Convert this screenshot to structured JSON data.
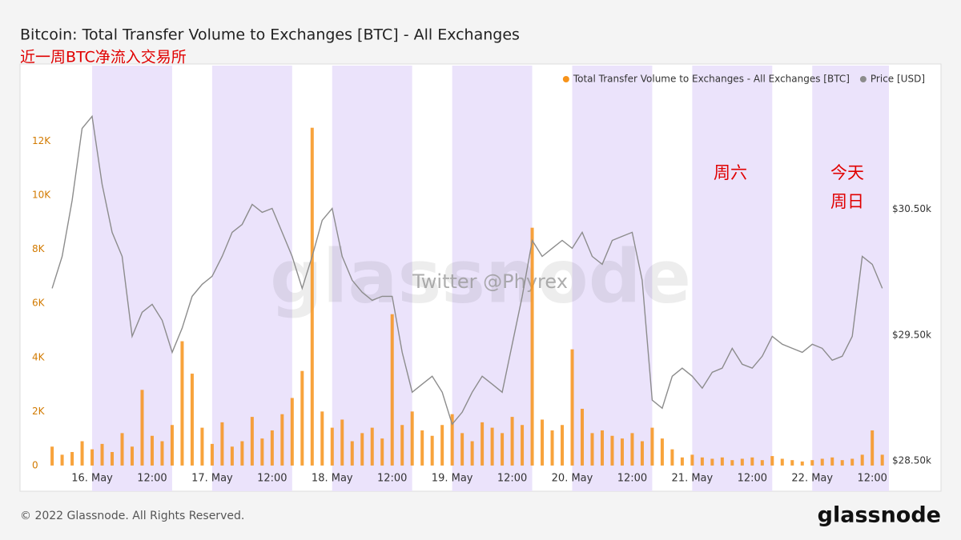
{
  "chart_data": {
    "type": "combo",
    "title": "Bitcoin: Total Transfer Volume to Exchanges [BTC] - All Exchanges",
    "subtitle": "近一周BTC净流入交易所",
    "annotations": [
      "周六",
      "今天",
      "周日"
    ],
    "watermark": [
      "glassnode",
      "Twitter @Phyrex"
    ],
    "legend": "top-right",
    "grid": false,
    "shaded_ranges": [
      [
        "05-16 00:00",
        "05-16 16:00"
      ],
      [
        "05-17 00:00",
        "05-17 16:00"
      ],
      [
        "05-18 00:00",
        "05-18 16:00"
      ],
      [
        "05-19 00:00",
        "05-19 16:00"
      ],
      [
        "05-20 00:00",
        "05-20 16:00"
      ],
      [
        "05-21 00:00",
        "05-21 16:00"
      ],
      [
        "05-22 00:00",
        "05-22 16:00"
      ]
    ],
    "shade_color": "#ebe3fb",
    "xlim": [
      "05-15 15:40",
      "05-22 15:20"
    ],
    "xticks": [
      {
        "value": "05-16 00:00",
        "label": "16. May"
      },
      {
        "value": "05-16 12:00",
        "label": "12:00"
      },
      {
        "value": "05-17 00:00",
        "label": "17. May"
      },
      {
        "value": "05-17 12:00",
        "label": "12:00"
      },
      {
        "value": "05-18 00:00",
        "label": "18. May"
      },
      {
        "value": "05-18 12:00",
        "label": "12:00"
      },
      {
        "value": "05-19 00:00",
        "label": "19. May"
      },
      {
        "value": "05-19 12:00",
        "label": "12:00"
      },
      {
        "value": "05-20 00:00",
        "label": "20. May"
      },
      {
        "value": "05-20 12:00",
        "label": "12:00"
      },
      {
        "value": "05-21 00:00",
        "label": "21. May"
      },
      {
        "value": "05-21 12:00",
        "label": "12:00"
      },
      {
        "value": "05-22 00:00",
        "label": "22. May"
      },
      {
        "value": "05-22 12:00",
        "label": "12:00"
      }
    ],
    "ylim": [
      -950,
      14800
    ],
    "yticks": [
      0,
      {
        "value": 2000,
        "label": "2K"
      },
      {
        "value": 4000,
        "label": "4K"
      },
      {
        "value": 6000,
        "label": "6K"
      },
      {
        "value": 8000,
        "label": "8K"
      },
      {
        "value": 10000,
        "label": "10K"
      },
      {
        "value": 12000,
        "label": "12K"
      }
    ],
    "y2lim": [
      28260,
      31640
    ],
    "y2ticks": [
      {
        "value": 28500,
        "label": "$28.50k"
      },
      {
        "value": 29500,
        "label": "$29.50k"
      },
      {
        "value": 30500,
        "label": "$30.50k"
      }
    ],
    "x": [
      "05-15 16:00",
      "05-15 18:00",
      "05-15 20:00",
      "05-15 22:00",
      "05-16 00:00",
      "05-16 02:00",
      "05-16 04:00",
      "05-16 06:00",
      "05-16 08:00",
      "05-16 10:00",
      "05-16 12:00",
      "05-16 14:00",
      "05-16 16:00",
      "05-16 18:00",
      "05-16 20:00",
      "05-16 22:00",
      "05-17 00:00",
      "05-17 02:00",
      "05-17 04:00",
      "05-17 06:00",
      "05-17 08:00",
      "05-17 10:00",
      "05-17 12:00",
      "05-17 14:00",
      "05-17 16:00",
      "05-17 18:00",
      "05-17 20:00",
      "05-17 22:00",
      "05-18 00:00",
      "05-18 02:00",
      "05-18 04:00",
      "05-18 06:00",
      "05-18 08:00",
      "05-18 10:00",
      "05-18 12:00",
      "05-18 14:00",
      "05-18 16:00",
      "05-18 18:00",
      "05-18 20:00",
      "05-18 22:00",
      "05-19 00:00",
      "05-19 02:00",
      "05-19 04:00",
      "05-19 06:00",
      "05-19 08:00",
      "05-19 10:00",
      "05-19 12:00",
      "05-19 14:00",
      "05-19 16:00",
      "05-19 18:00",
      "05-19 20:00",
      "05-19 22:00",
      "05-20 00:00",
      "05-20 02:00",
      "05-20 04:00",
      "05-20 06:00",
      "05-20 08:00",
      "05-20 10:00",
      "05-20 12:00",
      "05-20 14:00",
      "05-20 16:00",
      "05-20 18:00",
      "05-20 20:00",
      "05-20 22:00",
      "05-21 00:00",
      "05-21 02:00",
      "05-21 04:00",
      "05-21 06:00",
      "05-21 08:00",
      "05-21 10:00",
      "05-21 12:00",
      "05-21 14:00",
      "05-21 16:00",
      "05-21 18:00",
      "05-21 20:00",
      "05-21 22:00",
      "05-22 00:00",
      "05-22 02:00",
      "05-22 04:00",
      "05-22 06:00",
      "05-22 08:00",
      "05-22 10:00",
      "05-22 12:00",
      "05-22 14:00"
    ],
    "series": [
      {
        "name": "Total Transfer Volume to Exchanges - All Exchanges [BTC]",
        "type": "bar",
        "color": "#f7931a",
        "values": [
          700,
          400,
          500,
          900,
          600,
          800,
          500,
          1200,
          700,
          2800,
          1100,
          900,
          1500,
          4600,
          3400,
          1400,
          800,
          1600,
          700,
          900,
          1800,
          1000,
          1300,
          1900,
          2500,
          3500,
          12500,
          2000,
          1400,
          1700,
          900,
          1200,
          1400,
          1000,
          5600,
          1500,
          2000,
          1300,
          1100,
          1500,
          1900,
          1200,
          900,
          1600,
          1400,
          1200,
          1800,
          1500,
          8800,
          1700,
          1300,
          1500,
          4300,
          2100,
          1200,
          1300,
          1100,
          1000,
          1200,
          900,
          1400,
          1000,
          600,
          300,
          400,
          300,
          250,
          300,
          200,
          250,
          300,
          200,
          350,
          250,
          200,
          150,
          200,
          250,
          300,
          200,
          250,
          400,
          1300,
          400
        ]
      },
      {
        "name": "Price [USD]",
        "type": "line",
        "axis": "y2",
        "color": "#8c8c8c",
        "values": [
          29871,
          30125,
          30570,
          31141,
          31237,
          30697,
          30316,
          30125,
          29490,
          29681,
          29744,
          29617,
          29363,
          29554,
          29808,
          29903,
          29967,
          30125,
          30316,
          30379,
          30538,
          30475,
          30506,
          30316,
          30125,
          29871,
          30125,
          30411,
          30506,
          30125,
          29935,
          29840,
          29776,
          29808,
          29808,
          29363,
          29046,
          29110,
          29173,
          29046,
          28792,
          28887,
          29046,
          29173,
          29110,
          29046,
          29427,
          29808,
          30252,
          30125,
          30189,
          30252,
          30189,
          30316,
          30125,
          30062,
          30252,
          30284,
          30316,
          29935,
          28983,
          28919,
          29173,
          29237,
          29173,
          29078,
          29205,
          29237,
          29395,
          29268,
          29237,
          29332,
          29490,
          29427,
          29395,
          29363,
          29427,
          29395,
          29300,
          29332,
          29490,
          30125,
          30062,
          29871
        ]
      }
    ]
  },
  "footer": {
    "copyright": "© 2022 Glassnode. All Rights Reserved.",
    "logo": "glassnode"
  }
}
